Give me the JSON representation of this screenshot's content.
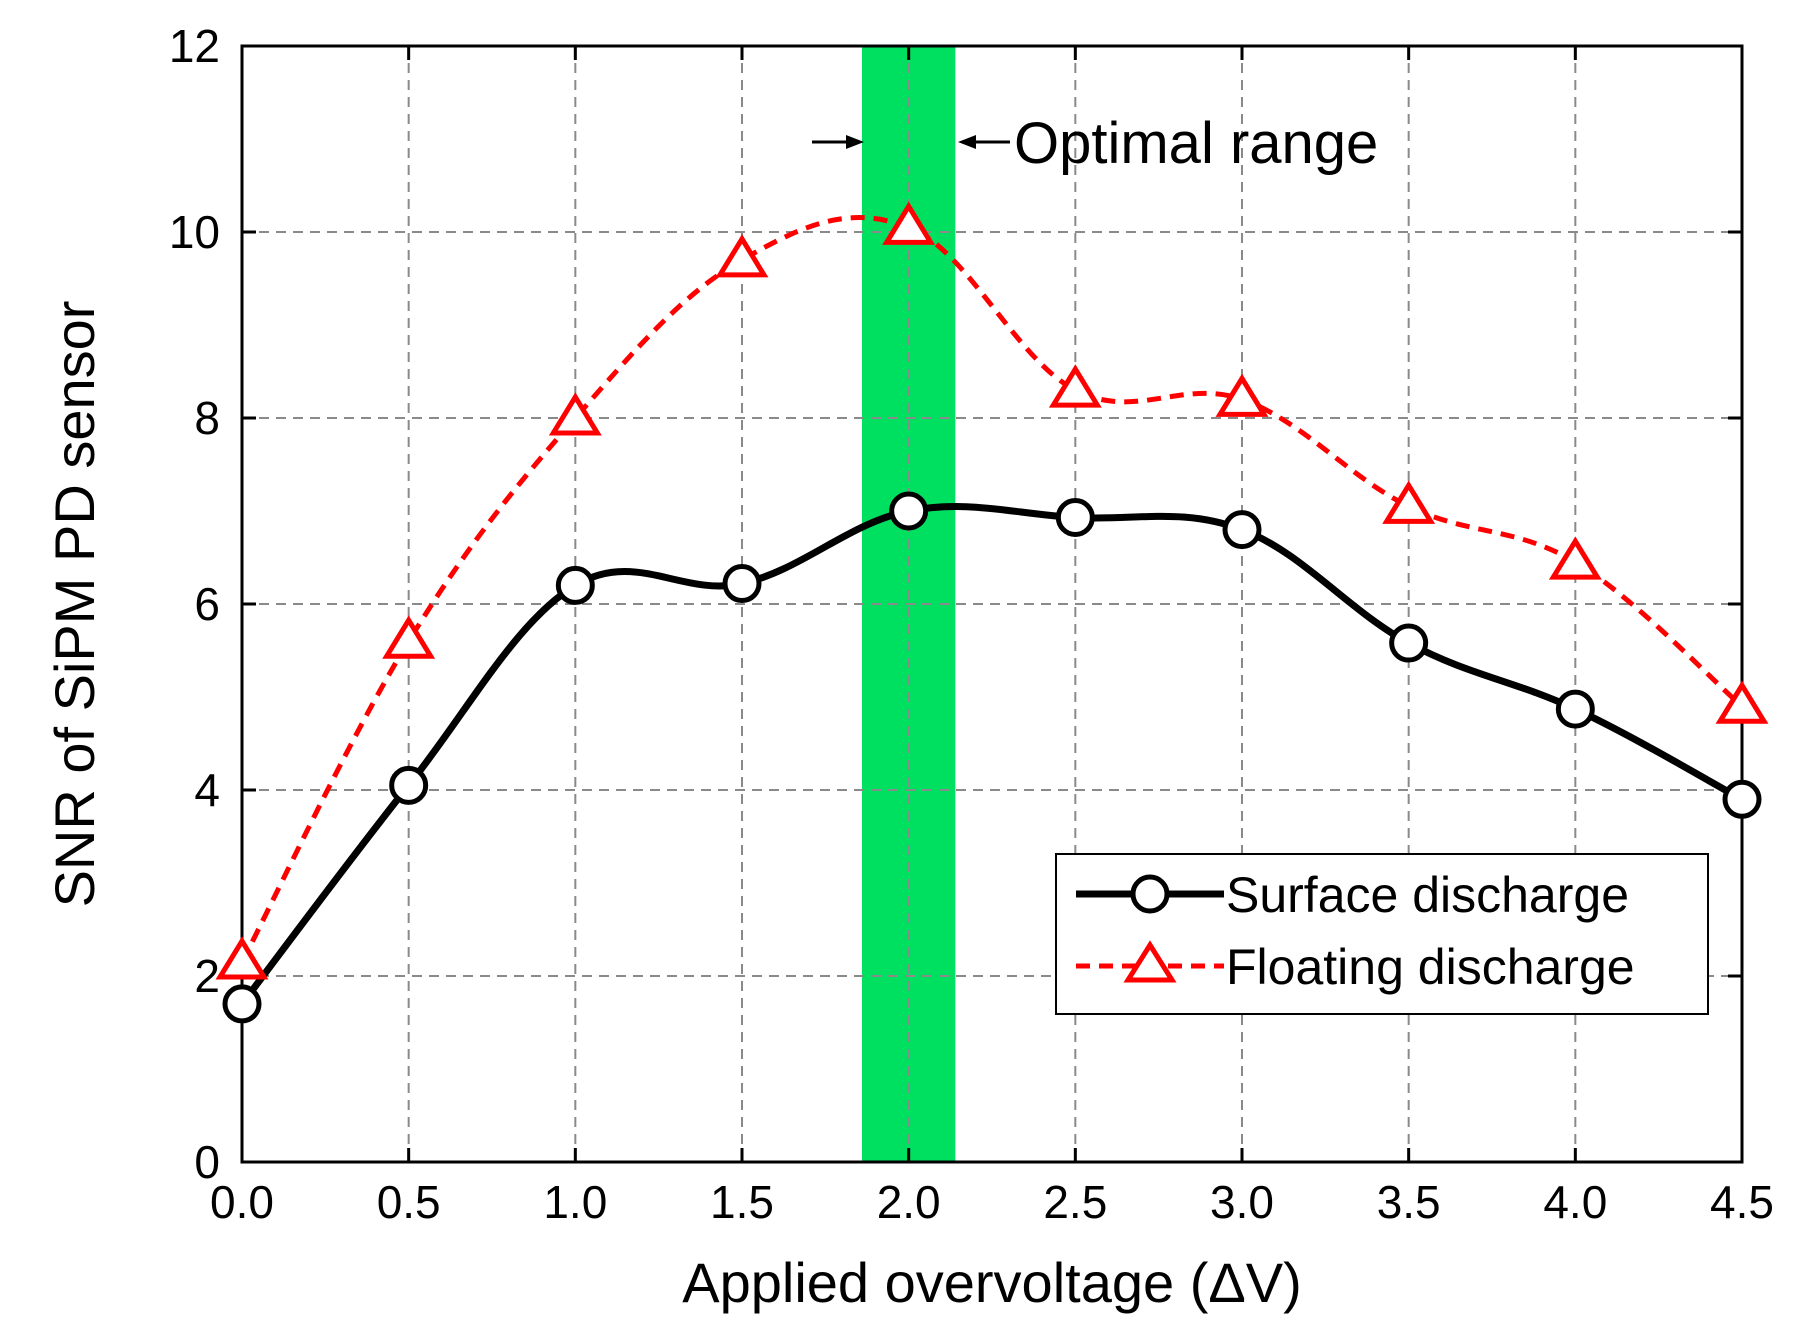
{
  "chart_data": {
    "type": "line",
    "xlabel": "Applied overvoltage (ΔV)",
    "ylabel": "SNR of SiPM PD sensor",
    "xlim": [
      0,
      4.5
    ],
    "ylim": [
      0,
      12
    ],
    "grid": true,
    "x_ticks": [
      "0.0",
      "0.5",
      "1.0",
      "1.5",
      "2.0",
      "2.5",
      "3.0",
      "3.5",
      "4.0",
      "4.5"
    ],
    "y_ticks": [
      "0",
      "2",
      "4",
      "6",
      "8",
      "10",
      "12"
    ],
    "x": [
      0.0,
      0.5,
      1.0,
      1.5,
      2.0,
      2.5,
      3.0,
      3.5,
      4.0,
      4.5
    ],
    "series": [
      {
        "name": "Surface discharge",
        "marker": "circle",
        "line_style": "solid",
        "color": "#000000",
        "values": [
          1.7,
          4.05,
          6.2,
          6.22,
          7.0,
          6.93,
          6.8,
          5.58,
          4.87,
          3.9
        ]
      },
      {
        "name": "Floating discharge",
        "marker": "triangle",
        "line_style": "dashed",
        "color": "#ff0000",
        "values": [
          2.15,
          5.6,
          8.0,
          9.7,
          10.05,
          8.3,
          8.2,
          7.05,
          6.45,
          4.9
        ]
      }
    ],
    "highlight_band": {
      "x_range": [
        1.86,
        2.14
      ],
      "color": "#00e060",
      "label": "Optimal range"
    },
    "legend_position": "bottom-right"
  }
}
